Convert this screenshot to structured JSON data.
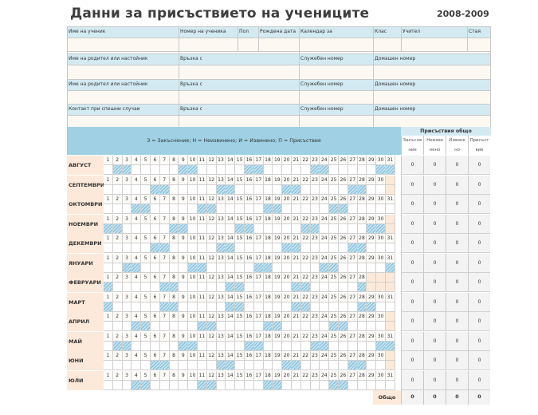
{
  "header": {
    "title": "Данни за присъствието на учениците",
    "year": "2008-2009"
  },
  "student_fields": [
    {
      "key": "name",
      "label": "Име на ученик"
    },
    {
      "key": "number",
      "label": "Номер на ученика"
    },
    {
      "key": "gender",
      "label": "Пол"
    },
    {
      "key": "birth",
      "label": "Рождена дата"
    },
    {
      "key": "calendar",
      "label": "Календар за"
    },
    {
      "key": "class",
      "label": "Клас"
    },
    {
      "key": "teacher",
      "label": "Учител"
    },
    {
      "key": "room",
      "label": "Стая"
    }
  ],
  "guardian_rows": [
    {
      "label": "Име на родител или настойник",
      "relation": "Връзка с",
      "work_phone": "Служебен номер",
      "home_phone": "Домашен номер"
    },
    {
      "label": "Име на родител или настойник",
      "relation": "Връзка с",
      "work_phone": "Служебен номер",
      "home_phone": "Домашен номер"
    },
    {
      "label": "Контакт при спешни случаи",
      "relation": "Връзка с",
      "work_phone": "Служебен номер",
      "home_phone": "Домашен номер"
    }
  ],
  "legend": "З = Закъснение; Н = Неизвинено; И = Извинено; П = Присъствие",
  "summary": {
    "title": "Присъствия общо",
    "columns": [
      {
        "line1": "Закъсне",
        "line2": "ние"
      },
      {
        "line1": "Неизви",
        "line2": "нено"
      },
      {
        "line1": "Извине",
        "line2": "но"
      },
      {
        "line1": "Присъст",
        "line2": "вие"
      }
    ],
    "grand_label": "Общо",
    "grand_totals": [
      "0",
      "0",
      "0",
      "0"
    ]
  },
  "months": [
    {
      "name": "АВГУСТ",
      "days": 31,
      "weekends": [
        2,
        3,
        9,
        10,
        16,
        17,
        23,
        24,
        30,
        31
      ],
      "totals": [
        "0",
        "0",
        "0",
        "0"
      ]
    },
    {
      "name": "СЕПТЕМВРИ",
      "days": 30,
      "weekends": [
        6,
        7,
        13,
        14,
        20,
        21,
        27,
        28
      ],
      "totals": [
        "0",
        "0",
        "0",
        "0"
      ]
    },
    {
      "name": "ОКТОМВРИ",
      "days": 31,
      "weekends": [
        4,
        5,
        11,
        12,
        18,
        19,
        25,
        26
      ],
      "totals": [
        "0",
        "0",
        "0",
        "0"
      ]
    },
    {
      "name": "НОЕМВРИ",
      "days": 30,
      "weekends": [
        1,
        2,
        8,
        9,
        15,
        16,
        22,
        23,
        29,
        30
      ],
      "totals": [
        "0",
        "0",
        "0",
        "0"
      ]
    },
    {
      "name": "ДЕКЕМВРИ",
      "days": 31,
      "weekends": [
        6,
        7,
        13,
        14,
        20,
        21,
        27,
        28
      ],
      "totals": [
        "0",
        "0",
        "0",
        "0"
      ]
    },
    {
      "name": "ЯНУАРИ",
      "days": 31,
      "weekends": [
        3,
        4,
        10,
        11,
        17,
        18,
        24,
        25,
        31
      ],
      "totals": [
        "0",
        "0",
        "0",
        "0"
      ]
    },
    {
      "name": "ФЕВРУАРИ",
      "days": 28,
      "weekends": [
        1,
        7,
        8,
        14,
        15,
        21,
        22,
        28
      ],
      "totals": [
        "0",
        "0",
        "0",
        "0"
      ]
    },
    {
      "name": "МАРТ",
      "days": 31,
      "weekends": [
        1,
        7,
        8,
        14,
        15,
        21,
        22,
        28,
        29
      ],
      "totals": [
        "0",
        "0",
        "0",
        "0"
      ]
    },
    {
      "name": "АПРИЛ",
      "days": 30,
      "weekends": [
        4,
        5,
        11,
        12,
        18,
        19,
        25,
        26
      ],
      "totals": [
        "0",
        "0",
        "0",
        "0"
      ]
    },
    {
      "name": "МАЙ",
      "days": 31,
      "weekends": [
        2,
        3,
        9,
        10,
        16,
        17,
        23,
        24,
        30,
        31
      ],
      "totals": [
        "0",
        "0",
        "0",
        "0"
      ]
    },
    {
      "name": "ЮНИ",
      "days": 30,
      "weekends": [
        6,
        7,
        13,
        14,
        20,
        21,
        27,
        28
      ],
      "totals": [
        "0",
        "0",
        "0",
        "0"
      ]
    },
    {
      "name": "ЮЛИ",
      "days": 31,
      "weekends": [
        4,
        5,
        11,
        12,
        18,
        19,
        25,
        26
      ],
      "totals": [
        "0",
        "0",
        "0",
        "0"
      ]
    }
  ]
}
